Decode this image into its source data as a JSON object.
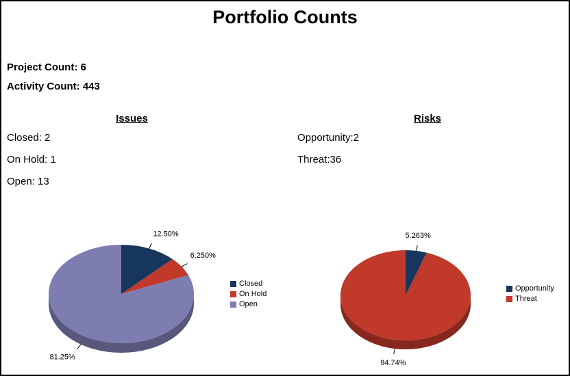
{
  "page": {
    "title": "Portfolio Counts"
  },
  "summary": {
    "project_count": "Project Count: 6",
    "activity_count": "Activity Count: 443"
  },
  "issues": {
    "heading": "Issues",
    "items": [
      "Closed: 2",
      "On Hold: 1",
      "Open: 13"
    ]
  },
  "risks": {
    "heading": "Risks",
    "items": [
      "Opportunity:2",
      "Threat:36"
    ]
  },
  "colors": {
    "navy": "#17365D",
    "red": "#C0392B",
    "purple": "#7D7DB2"
  },
  "chart_data": [
    {
      "type": "pie",
      "style": "3d",
      "title": "Issues",
      "legend_position": "right",
      "slices": [
        {
          "label": "Closed",
          "value": 2,
          "percent": 12.5,
          "percent_label": "12.50%",
          "color": "#17365D"
        },
        {
          "label": "On Hold",
          "value": 1,
          "percent": 6.25,
          "percent_label": "6.250%",
          "color": "#C0392B"
        },
        {
          "label": "Open",
          "value": 13,
          "percent": 81.25,
          "percent_label": "81.25%",
          "color": "#7D7DB2"
        }
      ]
    },
    {
      "type": "pie",
      "style": "3d",
      "title": "Risks",
      "legend_position": "right",
      "slices": [
        {
          "label": "Opportunity",
          "value": 2,
          "percent": 5.263,
          "percent_label": "5.263%",
          "color": "#17365D"
        },
        {
          "label": "Threat",
          "value": 36,
          "percent": 94.737,
          "percent_label": "94.74%",
          "color": "#C0392B"
        }
      ]
    }
  ]
}
